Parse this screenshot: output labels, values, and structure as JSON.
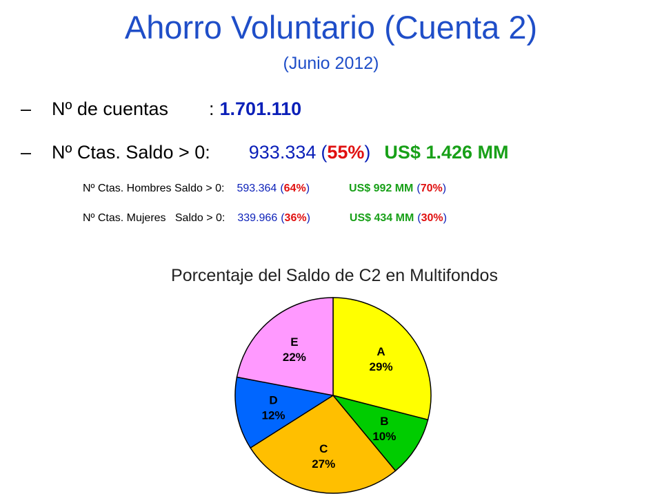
{
  "header": {
    "title": "Ahorro Voluntario (Cuenta 2)",
    "subtitle": "(Junio 2012)"
  },
  "bullets": {
    "dash": "–",
    "cuentas": {
      "label": "Nº de cuentas",
      "sep": ":",
      "value": "1.701.110"
    },
    "saldo": {
      "label": "Nº Ctas. Saldo > 0:",
      "count": "933.334",
      "open": "(",
      "pct": "55%",
      "close": ")",
      "usd": "US$ 1.426 MM"
    },
    "hombres": {
      "label": "Nº Ctas. Hombres Saldo > 0:",
      "count": "593.364",
      "open": "(",
      "pct": "64%",
      "close": ")",
      "usd": "US$ 992 MM",
      "usd_open": "(",
      "usd_pct": "70%",
      "usd_close": ")"
    },
    "mujeres": {
      "label": "Nº Ctas. Mujeres   Saldo > 0:",
      "count": "339.966",
      "open": "(",
      "pct": "36%",
      "close": ")",
      "usd": "US$ 434 MM",
      "usd_open": "(",
      "usd_pct": "30%",
      "usd_close": ")"
    }
  },
  "chart_data": {
    "type": "pie",
    "title": "Porcentaje del Saldo de C2 en Multifondos",
    "categories": [
      "A",
      "B",
      "C",
      "D",
      "E"
    ],
    "values": [
      29,
      10,
      27,
      12,
      22
    ],
    "labels": [
      "29%",
      "10%",
      "27%",
      "12%",
      "22%"
    ],
    "colors": [
      "#ffff00",
      "#00cc00",
      "#ffbf00",
      "#0066ff",
      "#ff99ff"
    ]
  }
}
